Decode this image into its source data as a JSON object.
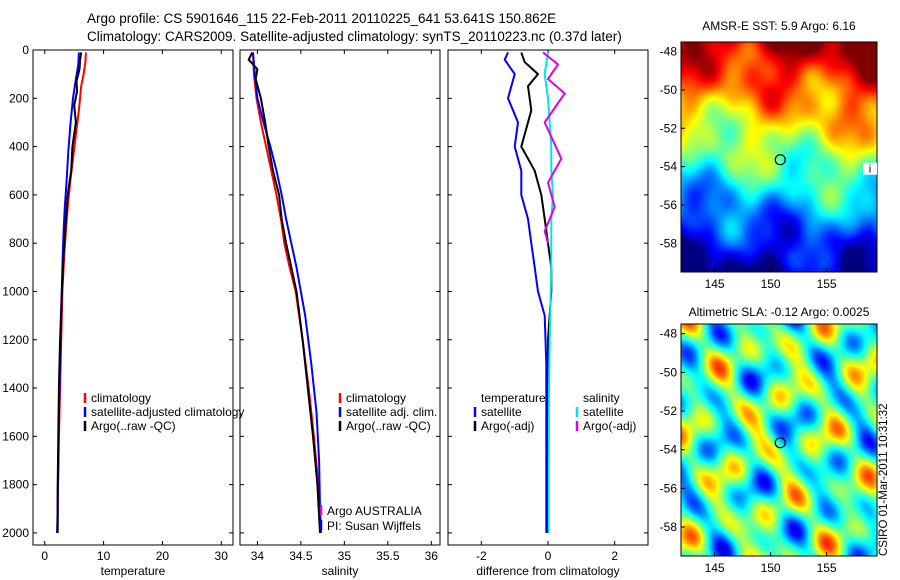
{
  "header": {
    "line1": "Argo profile: CS 5901646_115 22-Feb-2011 20110225_641 53.641S 150.862E",
    "line2": "Climatology: CARS2009. Satellite-adjusted climatology: synTS_20110223.nc (0.37d later)"
  },
  "colors": {
    "climatology": "#ff0000",
    "satellite": "#0000ff",
    "argo": "#000000",
    "satellite_salinity": "#00e5e5",
    "argo_adj_salinity": "#e000e0"
  },
  "chart_data": [
    {
      "type": "line",
      "id": "temperature",
      "xlabel": "temperature",
      "xlim": [
        -2,
        32
      ],
      "ylim": [
        0,
        2050
      ],
      "y_reversed": true,
      "xticks": [
        0,
        10,
        20,
        30
      ],
      "yticks": [
        0,
        200,
        400,
        600,
        800,
        1000,
        1200,
        1400,
        1600,
        1800,
        2000
      ],
      "legend": [
        "climatology",
        "satellite-adjusted climatology",
        "Argo(..raw -QC)"
      ],
      "series": [
        {
          "name": "climatology",
          "color": "#ff0000",
          "x": [
            7.0,
            6.9,
            6.6,
            6.2,
            5.8,
            5.3,
            4.8,
            4.3,
            3.9,
            3.6,
            3.3,
            3.0,
            2.8,
            2.6,
            2.4,
            2.3,
            2.2,
            2.2,
            2.1
          ],
          "y": [
            10,
            50,
            100,
            150,
            250,
            350,
            450,
            550,
            650,
            750,
            850,
            1000,
            1200,
            1400,
            1600,
            1750,
            1850,
            1950,
            2000
          ]
        },
        {
          "name": "satellite-adjusted climatology",
          "color": "#0000ff",
          "x": [
            5.8,
            5.7,
            5.3,
            4.8,
            4.4,
            4.0,
            3.7,
            3.4,
            3.2,
            3.0,
            2.8,
            2.6,
            2.4,
            2.3,
            2.2,
            2.1
          ],
          "y": [
            10,
            60,
            120,
            200,
            300,
            420,
            550,
            650,
            750,
            900,
            1100,
            1300,
            1500,
            1700,
            1900,
            2000
          ]
        },
        {
          "name": "Argo(..raw -QC)",
          "color": "#000000",
          "x": [
            6.2,
            6.0,
            5.9,
            5.4,
            5.5,
            5.0,
            5.3,
            4.7,
            4.5,
            3.9,
            3.6,
            3.2,
            2.9,
            2.6,
            2.4,
            2.3,
            2.2,
            2.2
          ],
          "y": [
            10,
            40,
            80,
            130,
            170,
            230,
            300,
            400,
            500,
            600,
            700,
            850,
            1000,
            1200,
            1400,
            1600,
            1800,
            2000
          ]
        }
      ]
    },
    {
      "type": "line",
      "id": "salinity",
      "xlabel": "salinity",
      "xlim": [
        33.8,
        36.1
      ],
      "ylim": [
        0,
        2050
      ],
      "y_reversed": true,
      "xticks": [
        34,
        34.5,
        35,
        35.5,
        36
      ],
      "legend": [
        "climatology",
        "satellite adj. clim.",
        "Argo(..raw -QC)"
      ],
      "annotation": [
        "Argo AUSTRALIA",
        "PI: Susan Wijffels"
      ],
      "series": [
        {
          "name": "climatology",
          "color": "#ff0000",
          "x": [
            33.95,
            33.96,
            33.99,
            34.04,
            34.1,
            34.16,
            34.22,
            34.27,
            34.31,
            34.37,
            34.44,
            34.52,
            34.59,
            34.65,
            34.7,
            34.72,
            34.73
          ],
          "y": [
            10,
            100,
            200,
            300,
            400,
            500,
            600,
            700,
            800,
            900,
            1000,
            1200,
            1400,
            1600,
            1800,
            1900,
            2000
          ]
        },
        {
          "name": "satellite adj. clim.",
          "color": "#0000ff",
          "x": [
            33.95,
            33.97,
            34.0,
            34.07,
            34.15,
            34.22,
            34.28,
            34.33,
            34.39,
            34.45,
            34.55,
            34.62,
            34.68,
            34.71,
            34.72,
            34.73
          ],
          "y": [
            10,
            100,
            200,
            300,
            400,
            500,
            600,
            700,
            800,
            900,
            1100,
            1300,
            1500,
            1700,
            1900,
            2000
          ]
        },
        {
          "name": "Argo(..raw -QC)",
          "color": "#000000",
          "x": [
            33.94,
            33.9,
            34.0,
            33.98,
            34.04,
            34.09,
            34.13,
            34.18,
            34.25,
            34.28,
            34.33,
            34.39,
            34.45,
            34.52,
            34.58,
            34.64,
            34.69,
            34.72
          ],
          "y": [
            10,
            40,
            80,
            120,
            200,
            300,
            400,
            500,
            600,
            700,
            800,
            900,
            1000,
            1200,
            1400,
            1600,
            1800,
            2000
          ]
        }
      ]
    },
    {
      "type": "line",
      "id": "difference",
      "xlabel": "difference from climatology",
      "xlim": [
        -3,
        3
      ],
      "ylim": [
        0,
        2050
      ],
      "y_reversed": true,
      "xticks": [
        -2,
        0,
        2
      ],
      "legend_groups": [
        {
          "heading": "temperature",
          "entries": [
            "satellite",
            "Argo(-adj)"
          ]
        },
        {
          "heading": "salinity",
          "entries": [
            "satellite",
            "Argo(-adj)"
          ]
        }
      ],
      "series": [
        {
          "name": "temperature satellite",
          "color": "#0000ff",
          "x": [
            -1.2,
            -1.3,
            -1.0,
            -1.2,
            -0.9,
            -1.0,
            -0.8,
            -0.8,
            -0.6,
            -0.5,
            -0.4,
            -0.3,
            -0.1,
            -0.05,
            -0.05,
            -0.05
          ],
          "y": [
            10,
            40,
            100,
            200,
            300,
            400,
            500,
            600,
            700,
            800,
            900,
            1000,
            1100,
            1300,
            1600,
            2000
          ]
        },
        {
          "name": "temperature Argo(-adj)",
          "color": "#000000",
          "x": [
            -0.8,
            -0.7,
            -0.3,
            -0.6,
            -0.5,
            -0.8,
            -0.4,
            -0.2,
            -0.1,
            0.0,
            0.1,
            0.1,
            0.0,
            0.0,
            0.0
          ],
          "y": [
            10,
            50,
            100,
            150,
            250,
            400,
            500,
            600,
            700,
            800,
            900,
            1000,
            1200,
            1600,
            2000
          ]
        },
        {
          "name": "salinity satellite",
          "color": "#00e5e5",
          "x": [
            0.0,
            -0.1,
            0.0,
            0.05,
            0.1,
            0.1,
            0.15,
            0.1,
            0.1,
            0.1,
            0.08,
            0.05,
            0.03,
            0.02,
            0.02
          ],
          "y": [
            10,
            100,
            200,
            300,
            400,
            500,
            600,
            700,
            800,
            900,
            1000,
            1200,
            1400,
            1700,
            2000
          ]
        },
        {
          "name": "salinity Argo(-adj)",
          "color": "#e000e0",
          "x": [
            -0.15,
            0.3,
            0.0,
            0.5,
            -0.1,
            0.4,
            0.0,
            0.2,
            -0.1,
            0.0
          ],
          "y": [
            10,
            60,
            120,
            180,
            300,
            450,
            550,
            650,
            750,
            800
          ]
        }
      ]
    },
    {
      "type": "heatmap",
      "id": "sst-map",
      "title": "AMSR-E SST: 5.9 Argo: 6.16",
      "xticks": [
        145,
        150,
        155
      ],
      "yticks": [
        -48,
        -50,
        -52,
        -54,
        -56,
        -58
      ],
      "xlim": [
        142,
        159.5
      ],
      "ylim": [
        -59.5,
        -47.5
      ],
      "marker": {
        "lon": 150.862,
        "lat": -53.641
      },
      "edge_label": "i"
    },
    {
      "type": "heatmap",
      "id": "sla-map",
      "title": "Altimetric SLA: -0.12 Argo: 0.0025",
      "xticks": [
        145,
        150,
        155
      ],
      "yticks": [
        -48,
        -50,
        -52,
        -54,
        -56,
        -58
      ],
      "xlim": [
        142,
        159.5
      ],
      "ylim": [
        -59.5,
        -47.5
      ],
      "marker": {
        "lon": 150.862,
        "lat": -53.641
      }
    }
  ],
  "footer": {
    "stamp": "CSIRO 01-Mar-2011 10:31:32"
  }
}
